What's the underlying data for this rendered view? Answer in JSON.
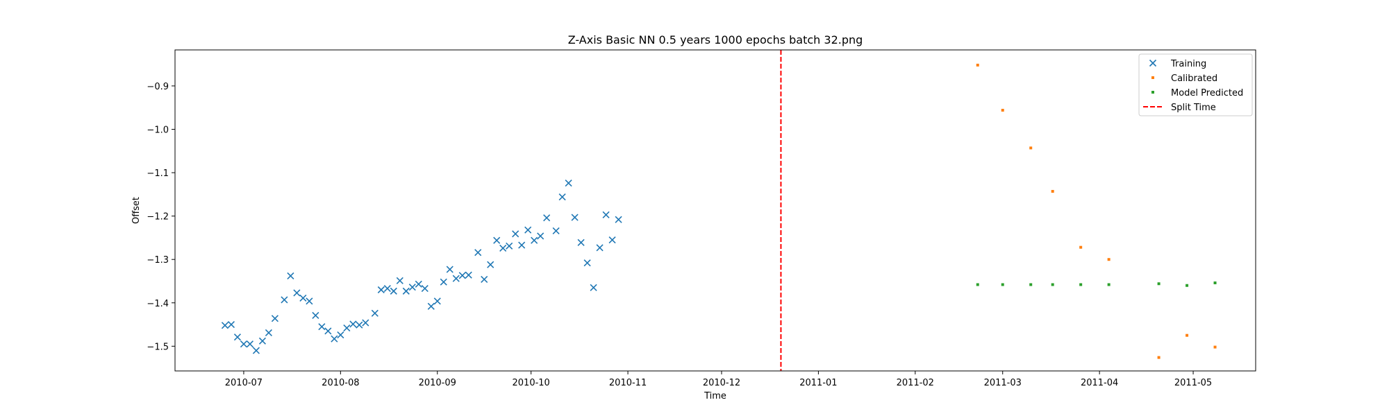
{
  "chart_data": {
    "type": "scatter",
    "title": "Z-Axis Basic NN 0.5 years 1000 epochs batch 32.png",
    "xlabel": "Time",
    "ylabel": "Offset",
    "x_type": "date",
    "xlim": [
      "2010-06-09",
      "2011-05-21"
    ],
    "ylim": [
      -1.557,
      -0.817
    ],
    "x_ticks": [
      "2010-07-01",
      "2010-08-01",
      "2010-09-01",
      "2010-10-01",
      "2010-11-01",
      "2010-12-01",
      "2011-01-01",
      "2011-02-01",
      "2011-03-01",
      "2011-04-01",
      "2011-05-01"
    ],
    "x_tick_labels": [
      "2010-07",
      "2010-08",
      "2010-09",
      "2010-10",
      "2010-11",
      "2010-12",
      "2011-01",
      "2011-02",
      "2011-03",
      "2011-04",
      "2011-05"
    ],
    "y_ticks": [
      -1.5,
      -1.4,
      -1.3,
      -1.2,
      -1.1,
      -1.0,
      -0.9
    ],
    "y_tick_labels": [
      "−1.5",
      "−1.4",
      "−1.3",
      "−1.2",
      "−1.1",
      "−1.0",
      "−0.9"
    ],
    "grid": false,
    "legend_position": "top-right",
    "series": [
      {
        "name": "Training",
        "marker": "x",
        "color": "#1f77b4",
        "points": [
          [
            "2010-06-25",
            -1.452
          ],
          [
            "2010-06-27",
            -1.45
          ],
          [
            "2010-06-29",
            -1.479
          ],
          [
            "2010-07-01",
            -1.495
          ],
          [
            "2010-07-03",
            -1.495
          ],
          [
            "2010-07-05",
            -1.51
          ],
          [
            "2010-07-07",
            -1.488
          ],
          [
            "2010-07-09",
            -1.469
          ],
          [
            "2010-07-11",
            -1.436
          ],
          [
            "2010-07-14",
            -1.393
          ],
          [
            "2010-07-16",
            -1.338
          ],
          [
            "2010-07-18",
            -1.377
          ],
          [
            "2010-07-20",
            -1.389
          ],
          [
            "2010-07-22",
            -1.396
          ],
          [
            "2010-07-24",
            -1.429
          ],
          [
            "2010-07-26",
            -1.455
          ],
          [
            "2010-07-28",
            -1.465
          ],
          [
            "2010-07-30",
            -1.483
          ],
          [
            "2010-08-01",
            -1.474
          ],
          [
            "2010-08-03",
            -1.458
          ],
          [
            "2010-08-05",
            -1.449
          ],
          [
            "2010-08-07",
            -1.451
          ],
          [
            "2010-08-09",
            -1.446
          ],
          [
            "2010-08-12",
            -1.424
          ],
          [
            "2010-08-14",
            -1.37
          ],
          [
            "2010-08-16",
            -1.367
          ],
          [
            "2010-08-18",
            -1.373
          ],
          [
            "2010-08-20",
            -1.349
          ],
          [
            "2010-08-22",
            -1.373
          ],
          [
            "2010-08-24",
            -1.364
          ],
          [
            "2010-08-26",
            -1.357
          ],
          [
            "2010-08-28",
            -1.367
          ],
          [
            "2010-08-30",
            -1.408
          ],
          [
            "2010-09-01",
            -1.396
          ],
          [
            "2010-09-03",
            -1.352
          ],
          [
            "2010-09-05",
            -1.323
          ],
          [
            "2010-09-07",
            -1.344
          ],
          [
            "2010-09-09",
            -1.337
          ],
          [
            "2010-09-11",
            -1.336
          ],
          [
            "2010-09-14",
            -1.284
          ],
          [
            "2010-09-16",
            -1.346
          ],
          [
            "2010-09-18",
            -1.312
          ],
          [
            "2010-09-20",
            -1.256
          ],
          [
            "2010-09-22",
            -1.274
          ],
          [
            "2010-09-24",
            -1.269
          ],
          [
            "2010-09-26",
            -1.241
          ],
          [
            "2010-09-28",
            -1.267
          ],
          [
            "2010-09-30",
            -1.232
          ],
          [
            "2010-10-02",
            -1.256
          ],
          [
            "2010-10-04",
            -1.246
          ],
          [
            "2010-10-06",
            -1.204
          ],
          [
            "2010-10-09",
            -1.234
          ],
          [
            "2010-10-11",
            -1.156
          ],
          [
            "2010-10-13",
            -1.124
          ],
          [
            "2010-10-15",
            -1.203
          ],
          [
            "2010-10-17",
            -1.261
          ],
          [
            "2010-10-19",
            -1.308
          ],
          [
            "2010-10-21",
            -1.365
          ],
          [
            "2010-10-23",
            -1.273
          ],
          [
            "2010-10-25",
            -1.197
          ],
          [
            "2010-10-27",
            -1.255
          ],
          [
            "2010-10-29",
            -1.208
          ]
        ]
      },
      {
        "name": "Calibrated",
        "marker": "dot",
        "color": "#ff7f0e",
        "points": [
          [
            "2011-02-21",
            -0.852
          ],
          [
            "2011-03-01",
            -0.956
          ],
          [
            "2011-03-10",
            -1.043
          ],
          [
            "2011-03-17",
            -1.143
          ],
          [
            "2011-03-26",
            -1.272
          ],
          [
            "2011-04-04",
            -1.3
          ],
          [
            "2011-04-20",
            -1.526
          ],
          [
            "2011-04-29",
            -1.475
          ],
          [
            "2011-05-08",
            -1.502
          ]
        ]
      },
      {
        "name": "Model Predicted",
        "marker": "dot",
        "color": "#2ca02c",
        "points": [
          [
            "2011-02-21",
            -1.358
          ],
          [
            "2011-03-01",
            -1.358
          ],
          [
            "2011-03-10",
            -1.358
          ],
          [
            "2011-03-17",
            -1.358
          ],
          [
            "2011-03-26",
            -1.358
          ],
          [
            "2011-04-04",
            -1.358
          ],
          [
            "2011-04-20",
            -1.356
          ],
          [
            "2011-04-29",
            -1.36
          ],
          [
            "2011-05-08",
            -1.354
          ]
        ]
      },
      {
        "name": "Split Time",
        "type": "vline",
        "style": "dashed",
        "color": "#ff0000",
        "x": "2010-12-20"
      }
    ]
  }
}
